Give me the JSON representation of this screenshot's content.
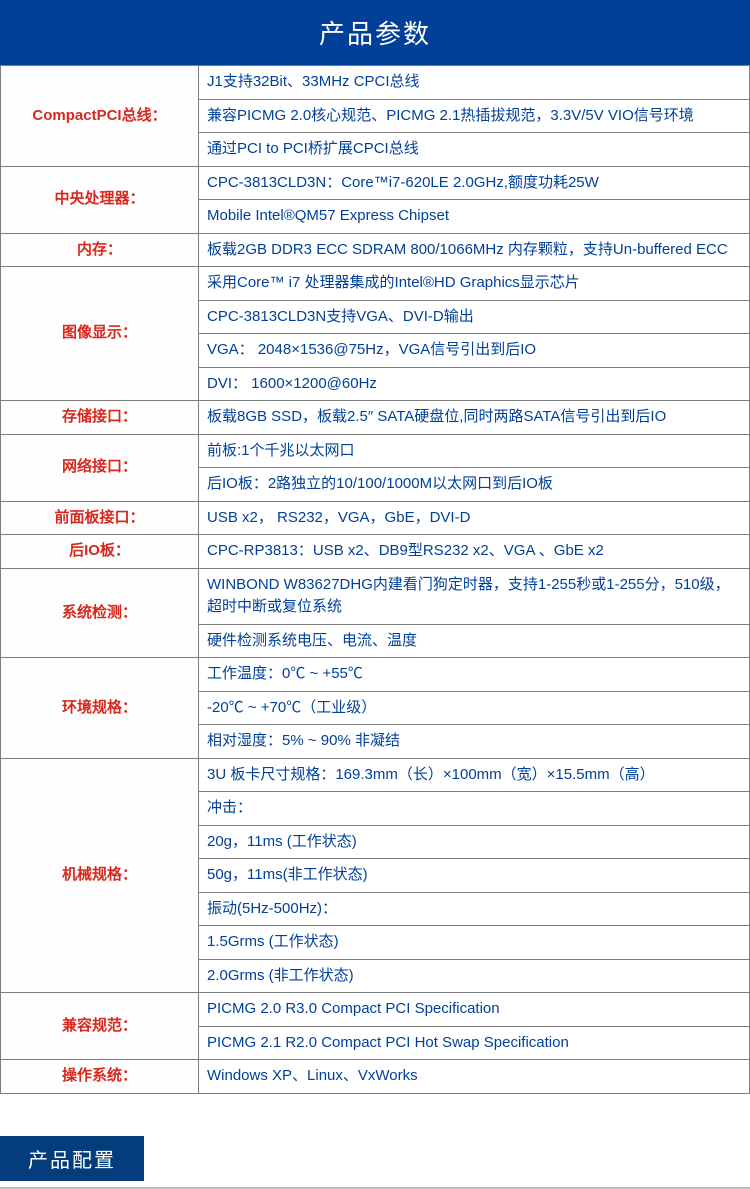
{
  "header": {
    "title": "产品参数"
  },
  "specs": [
    {
      "label": "CompactPCI总线：",
      "values": [
        "J1支持32Bit、33MHz CPCI总线",
        "兼容PICMG 2.0核心规范、PICMG 2.1热插拔规范，3.3V/5V VIO信号环境",
        "通过PCI to PCI桥扩展CPCI总线"
      ]
    },
    {
      "label": "中央处理器：",
      "values": [
        "CPC-3813CLD3N：Core™i7-620LE 2.0GHz,额度功耗25W",
        "Mobile Intel®QM57 Express Chipset"
      ]
    },
    {
      "label": "内存：",
      "values": [
        "板载2GB DDR3 ECC SDRAM 800/1066MHz 内存颗粒，支持Un-buffered ECC"
      ]
    },
    {
      "label": "图像显示：",
      "values": [
        "采用Core™ i7 处理器集成的Intel®HD Graphics显示芯片",
        "CPC-3813CLD3N支持VGA、DVI-D输出",
        "VGA： 2048×1536@75Hz，VGA信号引出到后IO",
        "DVI： 1600×1200@60Hz"
      ]
    },
    {
      "label": "存储接口：",
      "values": [
        "板载8GB SSD，板载2.5″ SATA硬盘位,同时两路SATA信号引出到后IO"
      ]
    },
    {
      "label": "网络接口：",
      "values": [
        "前板:1个千兆以太网口",
        "后IO板：2路独立的10/100/1000M以太网口到后IO板"
      ]
    },
    {
      "label": "前面板接口：",
      "values": [
        "USB x2， RS232，VGA，GbE，DVI-D"
      ]
    },
    {
      "label": "后IO板：",
      "values": [
        "CPC-RP3813：USB x2、DB9型RS232 x2、VGA 、GbE x2"
      ]
    },
    {
      "label": "系统检测：",
      "values": [
        "WINBOND W83627DHG内建看门狗定时器，支持1-255秒或1-255分，510级，超时中断或复位系统",
        "硬件检测系统电压、电流、温度"
      ]
    },
    {
      "label": "环境规格：",
      "values": [
        "工作温度：0℃ ~ +55℃",
        "-20℃ ~ +70℃（工业级）",
        "相对湿度：5% ~ 90% 非凝结"
      ]
    },
    {
      "label": "机械规格：",
      "values": [
        "3U 板卡尺寸规格：169.3mm（长）×100mm（宽）×15.5mm（高）",
        "冲击：",
        "20g，11ms (工作状态)",
        "50g，11ms(非工作状态)",
        "振动(5Hz-500Hz)：",
        "1.5Grms (工作状态)",
        "2.0Grms (非工作状态)"
      ]
    },
    {
      "label": "兼容规范：",
      "values": [
        "PICMG 2.0 R3.0 Compact PCI Specification",
        "PICMG 2.1 R2.0 Compact PCI Hot Swap Specification"
      ]
    },
    {
      "label": "操作系统：",
      "values": [
        "Windows XP、Linux、VxWorks"
      ]
    }
  ],
  "footer": {
    "section_tag": "产品配置"
  },
  "colors": {
    "header_bg": "#014099",
    "header_text": "#ffffff",
    "label_text": "#d8291f",
    "value_text": "#014099",
    "border": "#7d7d7d",
    "tag_bg": "#043d7c",
    "tag_border": "#bdbdbd"
  }
}
